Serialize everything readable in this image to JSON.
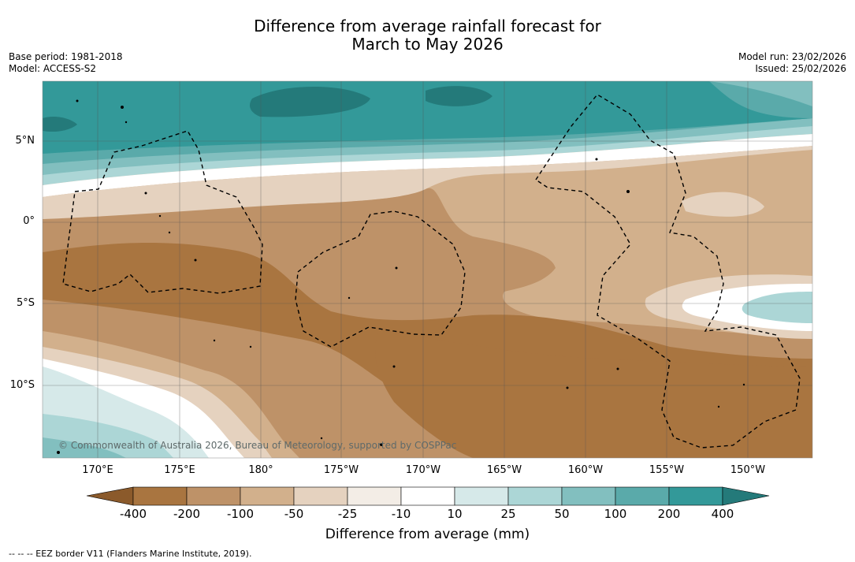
{
  "header": {
    "title_line1": "Difference from average rainfall forecast for",
    "title_line2": "March to May 2026",
    "base_period": "Base period: 1981-2018",
    "model": "Model: ACCESS-S2",
    "model_run": "Model run: 23/02/2026",
    "issued": "Issued: 25/02/2026"
  },
  "map": {
    "lat_labels": [
      "5°N",
      "0°",
      "5°S",
      "10°S"
    ],
    "lon_labels": [
      "170°E",
      "175°E",
      "180°",
      "175°W",
      "170°W",
      "165°W",
      "160°W",
      "155°W",
      "150°W"
    ],
    "copyright": "© Commonwealth of Australia 2026, Bureau of Meteorology, supported by COSPPac"
  },
  "colorbar": {
    "title": "Difference from average (mm)",
    "ticks": [
      "-400",
      "-200",
      "-100",
      "-50",
      "-25",
      "-10",
      "10",
      "25",
      "50",
      "100",
      "200",
      "400"
    ],
    "colors": [
      "#8b5a2b",
      "#a97540",
      "#be9268",
      "#d2b08c",
      "#e5d2bf",
      "#f3ede6",
      "#ffffff",
      "#d6e9e9",
      "#acd6d6",
      "#82bfbf",
      "#5aaaaa",
      "#339999",
      "#247a7a"
    ]
  },
  "legend": {
    "eez_note": "--  --  -- EEZ border V11 (Flanders Marine Institute, 2019)."
  }
}
